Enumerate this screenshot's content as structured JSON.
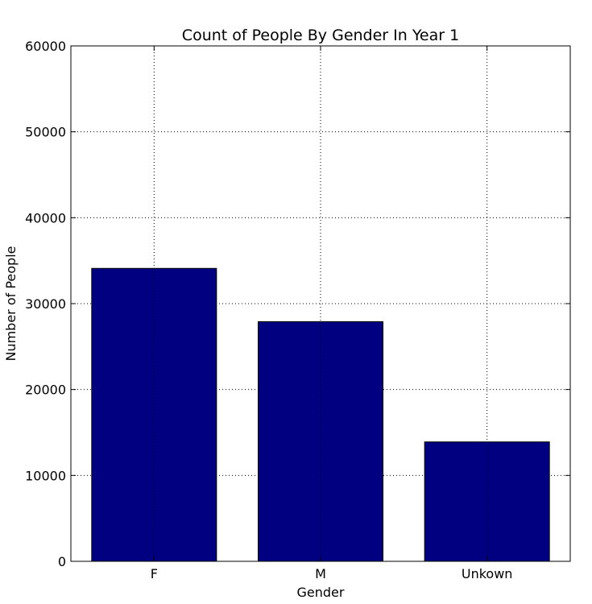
{
  "chart_data": {
    "type": "bar",
    "title": "Count of People By Gender In Year 1",
    "xlabel": "Gender",
    "ylabel": "Number of People",
    "categories": [
      "F",
      "M",
      "Unkown"
    ],
    "values": [
      34100,
      27900,
      13900
    ],
    "ylim": [
      0,
      60000
    ],
    "yticks": [
      0,
      10000,
      20000,
      30000,
      40000,
      50000,
      60000
    ],
    "ytick_labels": [
      "0",
      "10000",
      "20000",
      "30000",
      "40000",
      "50000",
      "60000"
    ],
    "grid": true,
    "legend": "none",
    "bar_color": "#000080",
    "edge_color": "#000000"
  }
}
